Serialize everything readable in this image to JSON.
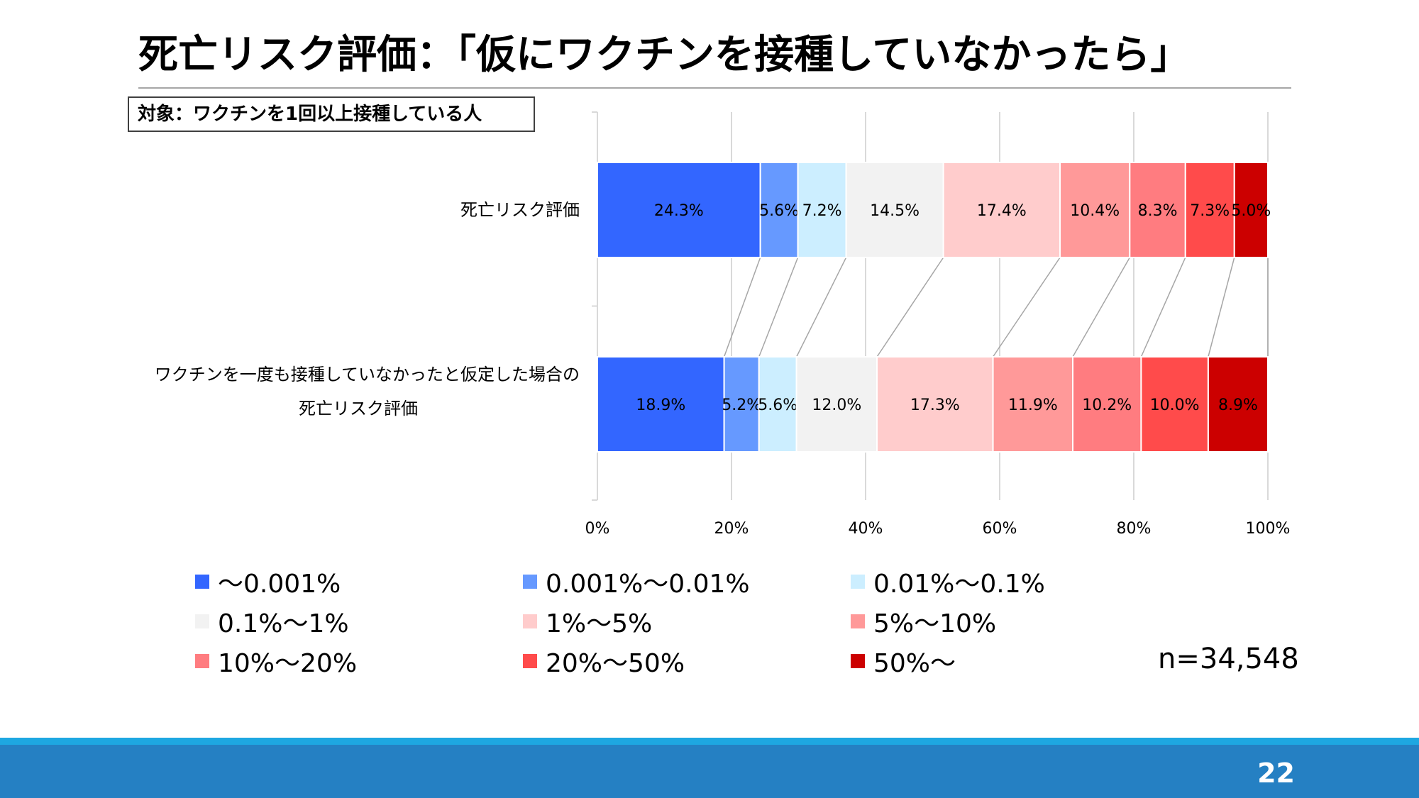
{
  "slide": {
    "title": "死亡リスク評価：「仮にワクチンを接種していなかったら」",
    "target_label": "対象：ワクチンを1回以上接種している人",
    "n_label": "n=34,548",
    "page_number": "22"
  },
  "colors": {
    "title_rule": "#a6a6a6",
    "footer_top": "#1ea7e1",
    "footer": "#2580c3"
  },
  "chart_data": {
    "type": "bar",
    "orientation": "horizontal",
    "stacked": "percent",
    "categories": [
      [
        "死亡リスク評価"
      ],
      [
        "ワクチンを一度も接種していなかったと仮定した場合の",
        "死亡リスク評価"
      ]
    ],
    "x_ticks": [
      "0%",
      "20%",
      "40%",
      "60%",
      "80%",
      "100%"
    ],
    "xlim": [
      0,
      100
    ],
    "grid": true,
    "legend_position": "bottom",
    "series_lines": true,
    "series": [
      {
        "name": "〜0.001%",
        "color": "#3366ff",
        "values": [
          24.3,
          18.9
        ],
        "labels": [
          "24.3%",
          "18.9%"
        ]
      },
      {
        "name": "0.001%〜0.01%",
        "color": "#6699ff",
        "values": [
          5.6,
          5.2
        ],
        "labels": [
          "5.6%",
          "5.2%"
        ]
      },
      {
        "name": "0.01%〜0.1%",
        "color": "#cceeff",
        "values": [
          7.2,
          5.6
        ],
        "labels": [
          "7.2%",
          "5.6%"
        ]
      },
      {
        "name": "0.1%〜1%",
        "color": "#f2f2f2",
        "values": [
          14.5,
          12.0
        ],
        "labels": [
          "14.5%",
          "12.0%"
        ]
      },
      {
        "name": "1%〜5%",
        "color": "#ffcccc",
        "values": [
          17.4,
          17.3
        ],
        "labels": [
          "17.4%",
          "17.3%"
        ]
      },
      {
        "name": "5%〜10%",
        "color": "#ff9999",
        "values": [
          10.4,
          11.9
        ],
        "labels": [
          "10.4%",
          "11.9%"
        ]
      },
      {
        "name": "10%〜20%",
        "color": "#ff7c80",
        "values": [
          8.3,
          10.2
        ],
        "labels": [
          "8.3%",
          "10.2%"
        ]
      },
      {
        "name": "20%〜50%",
        "color": "#ff4b4b",
        "values": [
          7.3,
          10.0
        ],
        "labels": [
          "7.3%",
          "10.0%"
        ]
      },
      {
        "name": "50%〜",
        "color": "#cc0000",
        "values": [
          5.0,
          8.9
        ],
        "labels": [
          "5.0%",
          "8.9%"
        ]
      }
    ]
  }
}
